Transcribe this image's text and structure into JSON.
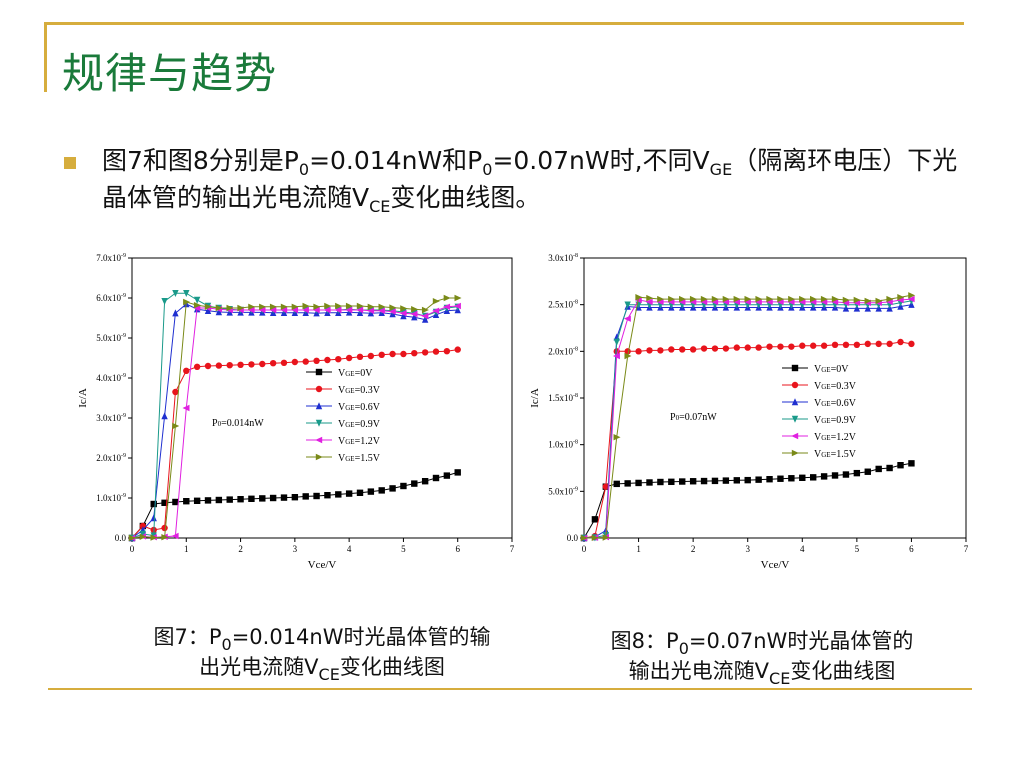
{
  "slide": {
    "title": "规律与趋势",
    "bullet": {
      "part1": "图7和图8分别是P",
      "sub1": "0",
      "part2": "=0.014nW和P",
      "sub2": "0",
      "part3": "=0.07nW时,不同V",
      "sub3": "GE",
      "part4": "（隔离环电压）下光晶体管的输出光电流随V",
      "sub4": "CE",
      "part5": "变化曲线图。"
    },
    "caption7": {
      "a": "图7：P",
      "a_sub": "0",
      "b": "=0.014nW时光晶体管的输",
      "c": "出光电流随V",
      "c_sub": "CE",
      "d": "变化曲线图"
    },
    "caption8": {
      "a": "图8：P",
      "a_sub": "0",
      "b": "=0.07nW时光晶体管的",
      "c": "输出光电流随V",
      "c_sub": "CE",
      "d": "变化曲线图"
    },
    "colors": {
      "accent": "#d6ad3d",
      "title": "#1a7a3a"
    }
  },
  "chart_data": [
    {
      "type": "line",
      "xlabel": "Vce/V",
      "ylabel": "Ic/A",
      "annotation": "P0=0.014nW",
      "xlim": [
        0,
        7
      ],
      "ylim": [
        0,
        7e-09
      ],
      "xticks": [
        0,
        1,
        2,
        3,
        4,
        5,
        6,
        7
      ],
      "xtick_labels": [
        "0",
        "1",
        "2",
        "3",
        "4",
        "5",
        "6",
        "7"
      ],
      "yticks": [
        0,
        1e-09,
        2e-09,
        3e-09,
        4e-09,
        5e-09,
        6e-09,
        7e-09
      ],
      "ytick_labels": [
        "0.0",
        "1.0x10-9",
        "2.0x10-9",
        "3.0x10-9",
        "4.0x10-9",
        "5.0x10-9",
        "6.0x10-9",
        "7.0x10-9"
      ],
      "legend": "center-right",
      "series": [
        {
          "name": "VGE=0V",
          "label_main": "V",
          "label_sub": "GE",
          "label_tail": "=0V",
          "color": "#000000",
          "marker": "square",
          "x": [
            0,
            0.2,
            0.4,
            0.6,
            0.8,
            1,
            1.2,
            1.4,
            1.6,
            1.8,
            2,
            2.2,
            2.4,
            2.6,
            2.8,
            3,
            3.2,
            3.4,
            3.6,
            3.8,
            4,
            4.2,
            4.4,
            4.6,
            4.8,
            5,
            5.2,
            5.4,
            5.6,
            5.8,
            6
          ],
          "y": [
            0,
            3e-10,
            8.5e-10,
            8.8e-10,
            9e-10,
            9.2e-10,
            9.3e-10,
            9.4e-10,
            9.5e-10,
            9.6e-10,
            9.7e-10,
            9.8e-10,
            9.9e-10,
            1e-09,
            1.01e-09,
            1.02e-09,
            1.04e-09,
            1.05e-09,
            1.07e-09,
            1.09e-09,
            1.11e-09,
            1.13e-09,
            1.16e-09,
            1.19e-09,
            1.24e-09,
            1.3e-09,
            1.36e-09,
            1.42e-09,
            1.5e-09,
            1.56e-09,
            1.64e-09
          ]
        },
        {
          "name": "VGE=0.3V",
          "label_main": "V",
          "label_sub": "GE",
          "label_tail": "=0.3V",
          "color": "#e8141c",
          "marker": "circle",
          "x": [
            0,
            0.2,
            0.4,
            0.6,
            0.8,
            1,
            1.2,
            1.4,
            1.6,
            1.8,
            2,
            2.2,
            2.4,
            2.6,
            2.8,
            3,
            3.2,
            3.4,
            3.6,
            3.8,
            4,
            4.2,
            4.4,
            4.6,
            4.8,
            5,
            5.2,
            5.4,
            5.6,
            5.8,
            6
          ],
          "y": [
            0,
            3e-10,
            2e-10,
            2.5e-10,
            3.65e-09,
            4.18e-09,
            4.28e-09,
            4.3e-09,
            4.31e-09,
            4.32e-09,
            4.33e-09,
            4.34e-09,
            4.35e-09,
            4.37e-09,
            4.38e-09,
            4.4e-09,
            4.41e-09,
            4.43e-09,
            4.45e-09,
            4.47e-09,
            4.5e-09,
            4.53e-09,
            4.55e-09,
            4.58e-09,
            4.6e-09,
            4.6e-09,
            4.62e-09,
            4.64e-09,
            4.66e-09,
            4.67e-09,
            4.71e-09
          ]
        },
        {
          "name": "VGE=0.6V",
          "label_main": "V",
          "label_sub": "GE",
          "label_tail": "=0.6V",
          "color": "#1f2fd0",
          "marker": "triangle",
          "x": [
            0,
            0.2,
            0.4,
            0.6,
            0.8,
            1,
            1.2,
            1.4,
            1.6,
            1.8,
            2,
            2.2,
            2.4,
            2.6,
            2.8,
            3,
            3.2,
            3.4,
            3.6,
            3.8,
            4,
            4.2,
            4.4,
            4.6,
            4.8,
            5,
            5.2,
            5.4,
            5.6,
            5.8,
            6
          ],
          "y": [
            0,
            2e-10,
            5e-10,
            3.05e-09,
            5.62e-09,
            5.85e-09,
            5.72e-09,
            5.68e-09,
            5.65e-09,
            5.64e-09,
            5.64e-09,
            5.64e-09,
            5.64e-09,
            5.63e-09,
            5.63e-09,
            5.63e-09,
            5.63e-09,
            5.62e-09,
            5.63e-09,
            5.63e-09,
            5.64e-09,
            5.63e-09,
            5.62e-09,
            5.63e-09,
            5.6e-09,
            5.55e-09,
            5.52e-09,
            5.46e-09,
            5.58e-09,
            5.68e-09,
            5.7e-09
          ]
        },
        {
          "name": "VGE=0.9V",
          "label_main": "V",
          "label_sub": "GE",
          "label_tail": "=0.9V",
          "color": "#1a9a8a",
          "marker": "tri-down",
          "x": [
            0,
            0.2,
            0.4,
            0.6,
            0.8,
            1,
            1.2,
            1.4,
            1.6,
            1.8,
            2,
            2.2,
            2.4,
            2.6,
            2.8,
            3,
            3.2,
            3.4,
            3.6,
            3.8,
            4,
            4.2,
            4.4,
            4.6,
            4.8,
            5,
            5.2,
            5.4,
            5.6,
            5.8,
            6
          ],
          "y": [
            0,
            1e-10,
            6e-11,
            5.92e-09,
            6.12e-09,
            6.12e-09,
            5.95e-09,
            5.8e-09,
            5.75e-09,
            5.72e-09,
            5.7e-09,
            5.7e-09,
            5.7e-09,
            5.7e-09,
            5.7e-09,
            5.7e-09,
            5.7e-09,
            5.7e-09,
            5.7e-09,
            5.7e-09,
            5.72e-09,
            5.7e-09,
            5.7e-09,
            5.7e-09,
            5.68e-09,
            5.65e-09,
            5.62e-09,
            5.55e-09,
            5.65e-09,
            5.75e-09,
            5.78e-09
          ]
        },
        {
          "name": "VGE=1.2V",
          "label_main": "V",
          "label_sub": "GE",
          "label_tail": "=1.2V",
          "color": "#e020e0",
          "marker": "tri-left",
          "x": [
            0,
            0.2,
            0.4,
            0.6,
            0.8,
            1,
            1.2,
            1.4,
            1.6,
            1.8,
            2,
            2.2,
            2.4,
            2.6,
            2.8,
            3,
            3.2,
            3.4,
            3.6,
            3.8,
            4,
            4.2,
            4.4,
            4.6,
            4.8,
            5,
            5.2,
            5.4,
            5.6,
            5.8,
            6
          ],
          "y": [
            0,
            4e-11,
            2e-11,
            3e-11,
            5e-11,
            3.25e-09,
            5.75e-09,
            5.75e-09,
            5.72e-09,
            5.7e-09,
            5.7e-09,
            5.7e-09,
            5.7e-09,
            5.7e-09,
            5.7e-09,
            5.7e-09,
            5.7e-09,
            5.7e-09,
            5.7e-09,
            5.7e-09,
            5.7e-09,
            5.7e-09,
            5.68e-09,
            5.68e-09,
            5.66e-09,
            5.62e-09,
            5.6e-09,
            5.55e-09,
            5.68e-09,
            5.78e-09,
            5.8e-09
          ]
        },
        {
          "name": "VGE=1.5V",
          "label_main": "V",
          "label_sub": "GE",
          "label_tail": "=1.5V",
          "color": "#7a8a18",
          "marker": "tri-right",
          "x": [
            0,
            0.2,
            0.4,
            0.6,
            0.8,
            1,
            1.2,
            1.4,
            1.6,
            1.8,
            2,
            2.2,
            2.4,
            2.6,
            2.8,
            3,
            3.2,
            3.4,
            3.6,
            3.8,
            4,
            4.2,
            4.4,
            4.6,
            4.8,
            5,
            5.2,
            5.4,
            5.6,
            5.8,
            6
          ],
          "y": [
            0,
            3e-11,
            1e-11,
            2e-11,
            2.8e-09,
            5.9e-09,
            5.82e-09,
            5.78e-09,
            5.75e-09,
            5.75e-09,
            5.75e-09,
            5.78e-09,
            5.78e-09,
            5.78e-09,
            5.78e-09,
            5.78e-09,
            5.8e-09,
            5.78e-09,
            5.8e-09,
            5.8e-09,
            5.8e-09,
            5.8e-09,
            5.78e-09,
            5.78e-09,
            5.76e-09,
            5.74e-09,
            5.72e-09,
            5.7e-09,
            5.92e-09,
            6e-09,
            6e-09
          ]
        }
      ]
    },
    {
      "type": "line",
      "xlabel": "Vce/V",
      "ylabel": "Ic/A",
      "annotation": "P0=0.07nW",
      "xlim": [
        0,
        7
      ],
      "ylim": [
        0,
        3e-08
      ],
      "xticks": [
        0,
        1,
        2,
        3,
        4,
        5,
        6,
        7
      ],
      "xtick_labels": [
        "0",
        "1",
        "2",
        "3",
        "4",
        "5",
        "6",
        "7"
      ],
      "yticks": [
        0,
        5e-09,
        1e-08,
        1.5e-08,
        2e-08,
        2.5e-08,
        3e-08
      ],
      "ytick_labels": [
        "0.0",
        "5.0x10-9",
        "1.0x10-8",
        "1.5x10-8",
        "2.0x10-8",
        "2.5x10-8",
        "3.0x10-8"
      ],
      "legend": "center-right",
      "series": [
        {
          "name": "VGE=0V",
          "label_main": "V",
          "label_sub": "GE",
          "label_tail": "=0V",
          "color": "#000000",
          "marker": "square",
          "x": [
            0,
            0.2,
            0.4,
            0.6,
            0.8,
            1,
            1.2,
            1.4,
            1.6,
            1.8,
            2,
            2.2,
            2.4,
            2.6,
            2.8,
            3,
            3.2,
            3.4,
            3.6,
            3.8,
            4,
            4.2,
            4.4,
            4.6,
            4.8,
            5,
            5.2,
            5.4,
            5.6,
            5.8,
            6
          ],
          "y": [
            0,
            2e-09,
            5.5e-09,
            5.8e-09,
            5.85e-09,
            5.9e-09,
            5.95e-09,
            6e-09,
            6.02e-09,
            6.05e-09,
            6.08e-09,
            6.1e-09,
            6.12e-09,
            6.15e-09,
            6.18e-09,
            6.2e-09,
            6.25e-09,
            6.3e-09,
            6.35e-09,
            6.4e-09,
            6.45e-09,
            6.5e-09,
            6.6e-09,
            6.7e-09,
            6.8e-09,
            6.95e-09,
            7.1e-09,
            7.4e-09,
            7.5e-09,
            7.8e-09,
            8e-09
          ]
        },
        {
          "name": "VGE=0.3V",
          "label_main": "V",
          "label_sub": "GE",
          "label_tail": "=0.3V",
          "color": "#e8141c",
          "marker": "circle",
          "x": [
            0,
            0.2,
            0.4,
            0.6,
            0.8,
            1,
            1.2,
            1.4,
            1.6,
            1.8,
            2,
            2.2,
            2.4,
            2.6,
            2.8,
            3,
            3.2,
            3.4,
            3.6,
            3.8,
            4,
            4.2,
            4.4,
            4.6,
            4.8,
            5,
            5.2,
            5.4,
            5.6,
            5.8,
            6
          ],
          "y": [
            0,
            2e-10,
            5.5e-09,
            2e-08,
            2e-08,
            2e-08,
            2.01e-08,
            2.01e-08,
            2.02e-08,
            2.02e-08,
            2.02e-08,
            2.03e-08,
            2.03e-08,
            2.03e-08,
            2.04e-08,
            2.04e-08,
            2.04e-08,
            2.05e-08,
            2.05e-08,
            2.05e-08,
            2.06e-08,
            2.06e-08,
            2.06e-08,
            2.07e-08,
            2.07e-08,
            2.07e-08,
            2.08e-08,
            2.08e-08,
            2.08e-08,
            2.1e-08,
            2.08e-08
          ]
        },
        {
          "name": "VGE=0.6V",
          "label_main": "V",
          "label_sub": "GE",
          "label_tail": "=0.6V",
          "color": "#1f2fd0",
          "marker": "triangle",
          "x": [
            0,
            0.2,
            0.4,
            0.6,
            0.8,
            1,
            1.2,
            1.4,
            1.6,
            1.8,
            2,
            2.2,
            2.4,
            2.6,
            2.8,
            3,
            3.2,
            3.4,
            3.6,
            3.8,
            4,
            4.2,
            4.4,
            4.6,
            4.8,
            5,
            5.2,
            5.4,
            5.6,
            5.8,
            6
          ],
          "y": [
            0,
            1e-10,
            8e-10,
            2.15e-08,
            2.48e-08,
            2.47e-08,
            2.47e-08,
            2.47e-08,
            2.47e-08,
            2.47e-08,
            2.47e-08,
            2.47e-08,
            2.47e-08,
            2.47e-08,
            2.47e-08,
            2.47e-08,
            2.47e-08,
            2.47e-08,
            2.47e-08,
            2.47e-08,
            2.47e-08,
            2.47e-08,
            2.47e-08,
            2.47e-08,
            2.46e-08,
            2.46e-08,
            2.46e-08,
            2.46e-08,
            2.46e-08,
            2.48e-08,
            2.5e-08
          ]
        },
        {
          "name": "VGE=0.9V",
          "label_main": "V",
          "label_sub": "GE",
          "label_tail": "=0.9V",
          "color": "#1a9a8a",
          "marker": "tri-down",
          "x": [
            0,
            0.2,
            0.4,
            0.6,
            0.8,
            1,
            1.2,
            1.4,
            1.6,
            1.8,
            2,
            2.2,
            2.4,
            2.6,
            2.8,
            3,
            3.2,
            3.4,
            3.6,
            3.8,
            4,
            4.2,
            4.4,
            4.6,
            4.8,
            5,
            5.2,
            5.4,
            5.6,
            5.8,
            6
          ],
          "y": [
            0,
            5e-11,
            3e-10,
            2.1e-08,
            2.5e-08,
            2.5e-08,
            2.5e-08,
            2.5e-08,
            2.5e-08,
            2.5e-08,
            2.5e-08,
            2.5e-08,
            2.5e-08,
            2.5e-08,
            2.5e-08,
            2.5e-08,
            2.5e-08,
            2.5e-08,
            2.5e-08,
            2.5e-08,
            2.5e-08,
            2.5e-08,
            2.5e-08,
            2.5e-08,
            2.5e-08,
            2.5e-08,
            2.5e-08,
            2.5e-08,
            2.5e-08,
            2.52e-08,
            2.54e-08
          ]
        },
        {
          "name": "VGE=1.2V",
          "label_main": "V",
          "label_sub": "GE",
          "label_tail": "=1.2V",
          "color": "#e020e0",
          "marker": "tri-left",
          "x": [
            0,
            0.2,
            0.4,
            0.6,
            0.8,
            1,
            1.2,
            1.4,
            1.6,
            1.8,
            2,
            2.2,
            2.4,
            2.6,
            2.8,
            3,
            3.2,
            3.4,
            3.6,
            3.8,
            4,
            4.2,
            4.4,
            4.6,
            4.8,
            5,
            5.2,
            5.4,
            5.6,
            5.8,
            6
          ],
          "y": [
            0,
            3e-11,
            1e-10,
            1.95e-08,
            2.35e-08,
            2.55e-08,
            2.53e-08,
            2.53e-08,
            2.53e-08,
            2.53e-08,
            2.53e-08,
            2.53e-08,
            2.53e-08,
            2.53e-08,
            2.53e-08,
            2.53e-08,
            2.53e-08,
            2.53e-08,
            2.53e-08,
            2.53e-08,
            2.53e-08,
            2.53e-08,
            2.53e-08,
            2.53e-08,
            2.52e-08,
            2.52e-08,
            2.52e-08,
            2.52e-08,
            2.53e-08,
            2.55e-08,
            2.56e-08
          ]
        },
        {
          "name": "VGE=1.5V",
          "label_main": "V",
          "label_sub": "GE",
          "label_tail": "=1.5V",
          "color": "#7a8a18",
          "marker": "tri-right",
          "x": [
            0,
            0.2,
            0.4,
            0.6,
            0.8,
            1,
            1.2,
            1.4,
            1.6,
            1.8,
            2,
            2.2,
            2.4,
            2.6,
            2.8,
            3,
            3.2,
            3.4,
            3.6,
            3.8,
            4,
            4.2,
            4.4,
            4.6,
            4.8,
            5,
            5.2,
            5.4,
            5.6,
            5.8,
            6
          ],
          "y": [
            0,
            2e-11,
            5e-11,
            1.08e-08,
            1.95e-08,
            2.58e-08,
            2.57e-08,
            2.56e-08,
            2.56e-08,
            2.56e-08,
            2.56e-08,
            2.56e-08,
            2.56e-08,
            2.56e-08,
            2.56e-08,
            2.56e-08,
            2.56e-08,
            2.56e-08,
            2.56e-08,
            2.56e-08,
            2.56e-08,
            2.56e-08,
            2.56e-08,
            2.56e-08,
            2.55e-08,
            2.55e-08,
            2.54e-08,
            2.54e-08,
            2.56e-08,
            2.58e-08,
            2.6e-08
          ]
        }
      ]
    }
  ]
}
